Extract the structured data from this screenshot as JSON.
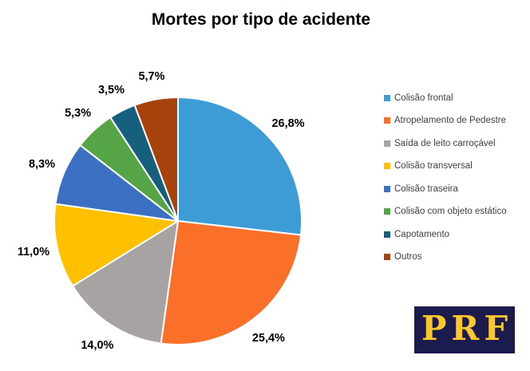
{
  "page": {
    "background": "#ffffff"
  },
  "chart_data": {
    "type": "pie",
    "title": "Mortes por tipo de acidente",
    "legend_position": "right",
    "direction": "clockwise",
    "start_angle_deg": 0,
    "value_label_format": "percent, comma decimal separator",
    "slices": [
      {
        "label": "Colisão frontal",
        "value": 26.8,
        "display": "26,8%",
        "color": "#3d9bd5"
      },
      {
        "label": "Atropelamento de Pedestre",
        "value": 25.4,
        "display": "25,4%",
        "color": "#fa7029"
      },
      {
        "label": "Saída de leito carroçável",
        "value": 14.0,
        "display": "14,0%",
        "color": "#a7a3a2"
      },
      {
        "label": "Colisão transversal",
        "value": 11.0,
        "display": "11,0%",
        "color": "#ffc000"
      },
      {
        "label": "Colisão traseira",
        "value": 8.3,
        "display": "8,3%",
        "color": "#3a6fc2"
      },
      {
        "label": "Colisão com objeto estático",
        "value": 5.3,
        "display": "5,3%",
        "color": "#55a546"
      },
      {
        "label": "Capotamento",
        "value": 3.5,
        "display": "3,5%",
        "color": "#16607e"
      },
      {
        "label": "Outros",
        "value": 5.7,
        "display": "5,7%",
        "color": "#a8420d"
      }
    ]
  },
  "logo": {
    "text": "PRF",
    "bg_color": "#1b1b4e",
    "text_color": "#fcc72d"
  }
}
